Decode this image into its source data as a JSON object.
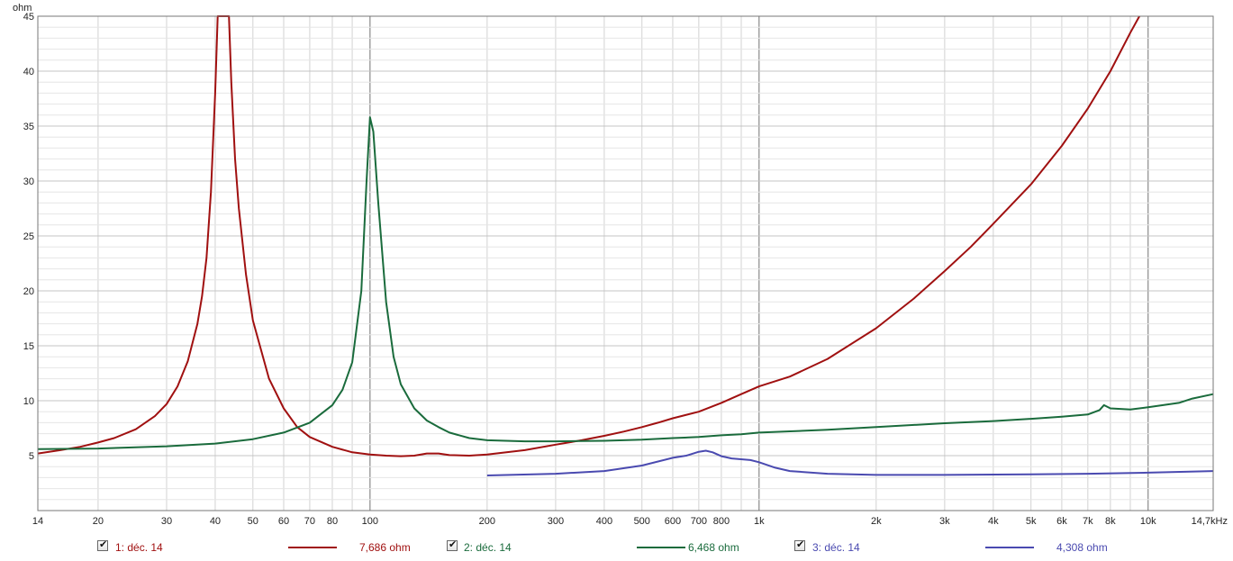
{
  "chart_data": {
    "type": "line",
    "title": "",
    "xlabel": "",
    "ylabel": "ohm",
    "x_scale": "log",
    "xlim": [
      14,
      14700
    ],
    "ylim": [
      0,
      45
    ],
    "grid": true,
    "x_ticks": [
      {
        "v": 14,
        "label": "14"
      },
      {
        "v": 20,
        "label": "20"
      },
      {
        "v": 30,
        "label": "30"
      },
      {
        "v": 40,
        "label": "40"
      },
      {
        "v": 50,
        "label": "50"
      },
      {
        "v": 60,
        "label": "60"
      },
      {
        "v": 70,
        "label": "70"
      },
      {
        "v": 80,
        "label": "80"
      },
      {
        "v": 100,
        "label": "100"
      },
      {
        "v": 200,
        "label": "200"
      },
      {
        "v": 300,
        "label": "300"
      },
      {
        "v": 400,
        "label": "400"
      },
      {
        "v": 500,
        "label": "500"
      },
      {
        "v": 600,
        "label": "600"
      },
      {
        "v": 700,
        "label": "700"
      },
      {
        "v": 800,
        "label": "800"
      },
      {
        "v": 1000,
        "label": "1k"
      },
      {
        "v": 2000,
        "label": "2k"
      },
      {
        "v": 3000,
        "label": "3k"
      },
      {
        "v": 4000,
        "label": "4k"
      },
      {
        "v": 5000,
        "label": "5k"
      },
      {
        "v": 6000,
        "label": "6k"
      },
      {
        "v": 7000,
        "label": "7k"
      },
      {
        "v": 8000,
        "label": "8k"
      },
      {
        "v": 10000,
        "label": "10k"
      },
      {
        "v": 14700,
        "label": "14,7kHz"
      }
    ],
    "y_ticks": [
      5,
      10,
      15,
      20,
      25,
      30,
      35,
      40,
      45
    ],
    "series": [
      {
        "name": "1: déc. 14",
        "color": "#a01010",
        "points": [
          [
            14,
            5.2
          ],
          [
            16,
            5.5
          ],
          [
            18,
            5.8
          ],
          [
            20,
            6.2
          ],
          [
            22,
            6.6
          ],
          [
            25,
            7.4
          ],
          [
            28,
            8.6
          ],
          [
            30,
            9.7
          ],
          [
            32,
            11.3
          ],
          [
            34,
            13.6
          ],
          [
            36,
            17.0
          ],
          [
            37,
            19.5
          ],
          [
            38,
            23.0
          ],
          [
            39,
            29.0
          ],
          [
            40,
            38.0
          ],
          [
            40.6,
            45.0
          ],
          [
            43.4,
            45.0
          ],
          [
            44,
            39.0
          ],
          [
            45,
            32.0
          ],
          [
            46,
            27.5
          ],
          [
            48,
            21.5
          ],
          [
            50,
            17.3
          ],
          [
            55,
            12.0
          ],
          [
            60,
            9.3
          ],
          [
            65,
            7.6
          ],
          [
            70,
            6.7
          ],
          [
            80,
            5.8
          ],
          [
            90,
            5.3
          ],
          [
            100,
            5.1
          ],
          [
            110,
            5.0
          ],
          [
            120,
            4.95
          ],
          [
            130,
            5.0
          ],
          [
            140,
            5.2
          ],
          [
            150,
            5.2
          ],
          [
            160,
            5.05
          ],
          [
            180,
            5.0
          ],
          [
            200,
            5.1
          ],
          [
            250,
            5.5
          ],
          [
            300,
            6.0
          ],
          [
            350,
            6.4
          ],
          [
            400,
            6.8
          ],
          [
            450,
            7.2
          ],
          [
            500,
            7.6
          ],
          [
            550,
            8.0
          ],
          [
            600,
            8.4
          ],
          [
            700,
            9.0
          ],
          [
            800,
            9.8
          ],
          [
            900,
            10.6
          ],
          [
            1000,
            11.3
          ],
          [
            1200,
            12.2
          ],
          [
            1500,
            13.8
          ],
          [
            2000,
            16.6
          ],
          [
            2500,
            19.3
          ],
          [
            3000,
            21.8
          ],
          [
            3500,
            24.0
          ],
          [
            4000,
            26.1
          ],
          [
            5000,
            29.7
          ],
          [
            6000,
            33.2
          ],
          [
            7000,
            36.6
          ],
          [
            8000,
            40.0
          ],
          [
            9000,
            43.5
          ],
          [
            9500,
            45.0
          ]
        ]
      },
      {
        "name": "2: déc. 14",
        "color": "#1a6b3c",
        "points": [
          [
            14,
            5.6
          ],
          [
            20,
            5.65
          ],
          [
            30,
            5.85
          ],
          [
            40,
            6.1
          ],
          [
            50,
            6.5
          ],
          [
            60,
            7.1
          ],
          [
            70,
            8.0
          ],
          [
            80,
            9.6
          ],
          [
            85,
            11.0
          ],
          [
            90,
            13.5
          ],
          [
            95,
            20.0
          ],
          [
            98,
            30.0
          ],
          [
            100,
            35.8
          ],
          [
            102,
            34.5
          ],
          [
            105,
            28.0
          ],
          [
            110,
            19.0
          ],
          [
            115,
            14.0
          ],
          [
            120,
            11.5
          ],
          [
            130,
            9.3
          ],
          [
            140,
            8.2
          ],
          [
            150,
            7.6
          ],
          [
            160,
            7.1
          ],
          [
            180,
            6.6
          ],
          [
            200,
            6.4
          ],
          [
            250,
            6.3
          ],
          [
            300,
            6.3
          ],
          [
            400,
            6.35
          ],
          [
            500,
            6.45
          ],
          [
            600,
            6.6
          ],
          [
            700,
            6.7
          ],
          [
            800,
            6.85
          ],
          [
            900,
            6.95
          ],
          [
            1000,
            7.1
          ],
          [
            1500,
            7.35
          ],
          [
            2000,
            7.6
          ],
          [
            3000,
            7.95
          ],
          [
            4000,
            8.15
          ],
          [
            5000,
            8.35
          ],
          [
            6000,
            8.55
          ],
          [
            7000,
            8.75
          ],
          [
            7500,
            9.15
          ],
          [
            7700,
            9.6
          ],
          [
            8000,
            9.3
          ],
          [
            9000,
            9.2
          ],
          [
            10000,
            9.4
          ],
          [
            12000,
            9.8
          ],
          [
            13000,
            10.2
          ],
          [
            14700,
            10.6
          ]
        ]
      },
      {
        "name": "3: déc. 14",
        "color": "#4a4ab0",
        "points": [
          [
            200,
            3.2
          ],
          [
            300,
            3.35
          ],
          [
            400,
            3.6
          ],
          [
            500,
            4.1
          ],
          [
            600,
            4.8
          ],
          [
            650,
            5.0
          ],
          [
            700,
            5.35
          ],
          [
            730,
            5.45
          ],
          [
            760,
            5.3
          ],
          [
            800,
            4.95
          ],
          [
            850,
            4.75
          ],
          [
            950,
            4.6
          ],
          [
            1000,
            4.4
          ],
          [
            1100,
            3.9
          ],
          [
            1200,
            3.6
          ],
          [
            1500,
            3.35
          ],
          [
            2000,
            3.25
          ],
          [
            3000,
            3.25
          ],
          [
            5000,
            3.3
          ],
          [
            7000,
            3.35
          ],
          [
            10000,
            3.45
          ],
          [
            14700,
            3.6
          ]
        ]
      }
    ]
  },
  "legend": [
    {
      "label": "1: déc. 14",
      "value": "7,686 ohm",
      "color": "#a01010"
    },
    {
      "label": "2: déc. 14",
      "value": "6,468 ohm",
      "color": "#1a6b3c"
    },
    {
      "label": "3: déc. 14",
      "value": "4,308 ohm",
      "color": "#4a4ab0"
    }
  ]
}
